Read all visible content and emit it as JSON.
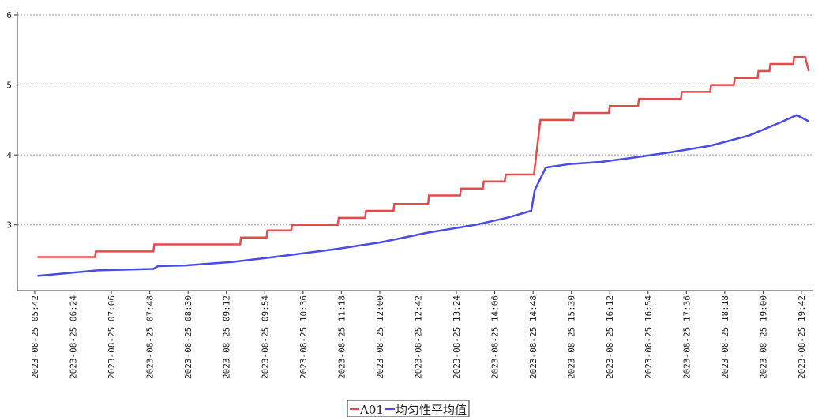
{
  "chart_data": {
    "type": "line",
    "xlim": [
      "2023-08-25 05:23",
      "2023-08-25 19:55"
    ],
    "xticks": [
      "2023-08-25 05:42",
      "2023-08-25 06:24",
      "2023-08-25 07:06",
      "2023-08-25 07:48",
      "2023-08-25 08:30",
      "2023-08-25 09:12",
      "2023-08-25 09:54",
      "2023-08-25 10:36",
      "2023-08-25 11:18",
      "2023-08-25 12:00",
      "2023-08-25 12:42",
      "2023-08-25 13:24",
      "2023-08-25 14:06",
      "2023-08-25 14:48",
      "2023-08-25 15:30",
      "2023-08-25 16:12",
      "2023-08-25 16:54",
      "2023-08-25 17:36",
      "2023-08-25 18:18",
      "2023-08-25 19:00",
      "2023-08-25 19:42"
    ],
    "ylim": [
      2.06,
      6
    ],
    "yticks": [
      3,
      4,
      5,
      6
    ],
    "grid": true,
    "legend": "bottom",
    "series": [
      {
        "name": "A01",
        "color": "#e84a4a",
        "x": [
          "2023-08-25 05:45",
          "2023-08-25 06:48",
          "2023-08-25 06:49",
          "2023-08-25 07:52",
          "2023-08-25 07:53",
          "2023-08-25 09:27",
          "2023-08-25 09:28",
          "2023-08-25 09:56",
          "2023-08-25 09:57",
          "2023-08-25 10:23",
          "2023-08-25 10:24",
          "2023-08-25 11:14",
          "2023-08-25 11:15",
          "2023-08-25 11:44",
          "2023-08-25 11:45",
          "2023-08-25 12:15",
          "2023-08-25 12:16",
          "2023-08-25 12:53",
          "2023-08-25 12:54",
          "2023-08-25 13:28",
          "2023-08-25 13:29",
          "2023-08-25 13:53",
          "2023-08-25 13:54",
          "2023-08-25 14:17",
          "2023-08-25 14:18",
          "2023-08-25 14:49",
          "2023-08-25 14:56",
          "2023-08-25 15:32",
          "2023-08-25 15:33",
          "2023-08-25 16:11",
          "2023-08-25 16:12",
          "2023-08-25 16:43",
          "2023-08-25 16:44",
          "2023-08-25 17:30",
          "2023-08-25 17:31",
          "2023-08-25 18:02",
          "2023-08-25 18:03",
          "2023-08-25 18:28",
          "2023-08-25 18:29",
          "2023-08-25 18:54",
          "2023-08-25 18:55",
          "2023-08-25 19:07",
          "2023-08-25 19:08",
          "2023-08-25 19:33",
          "2023-08-25 19:34",
          "2023-08-25 19:46",
          "2023-08-25 19:50"
        ],
        "values": [
          2.54,
          2.54,
          2.62,
          2.62,
          2.72,
          2.72,
          2.82,
          2.82,
          2.92,
          2.92,
          3.0,
          3.0,
          3.1,
          3.1,
          3.2,
          3.2,
          3.3,
          3.3,
          3.42,
          3.42,
          3.52,
          3.52,
          3.62,
          3.62,
          3.72,
          3.72,
          4.5,
          4.5,
          4.6,
          4.6,
          4.7,
          4.7,
          4.8,
          4.8,
          4.9,
          4.9,
          5.0,
          5.0,
          5.1,
          5.1,
          5.2,
          5.2,
          5.3,
          5.3,
          5.4,
          5.4,
          5.2
        ]
      },
      {
        "name": "均匀性平均值",
        "color": "#4a4ae8",
        "x": [
          "2023-08-25 05:45",
          "2023-08-25 06:52",
          "2023-08-25 07:52",
          "2023-08-25 07:57",
          "2023-08-25 08:27",
          "2023-08-25 09:18",
          "2023-08-25 10:10",
          "2023-08-25 11:10",
          "2023-08-25 12:01",
          "2023-08-25 12:53",
          "2023-08-25 13:45",
          "2023-08-25 14:19",
          "2023-08-25 14:46",
          "2023-08-25 14:50",
          "2023-08-25 15:02",
          "2023-08-25 15:28",
          "2023-08-25 16:02",
          "2023-08-25 16:37",
          "2023-08-25 17:20",
          "2023-08-25 18:02",
          "2023-08-25 18:45",
          "2023-08-25 19:20",
          "2023-08-25 19:37",
          "2023-08-25 19:50"
        ],
        "values": [
          2.27,
          2.35,
          2.37,
          2.41,
          2.42,
          2.47,
          2.55,
          2.65,
          2.75,
          2.89,
          3.0,
          3.1,
          3.2,
          3.5,
          3.82,
          3.87,
          3.9,
          3.96,
          4.04,
          4.13,
          4.28,
          4.47,
          4.57,
          4.48
        ]
      }
    ]
  }
}
